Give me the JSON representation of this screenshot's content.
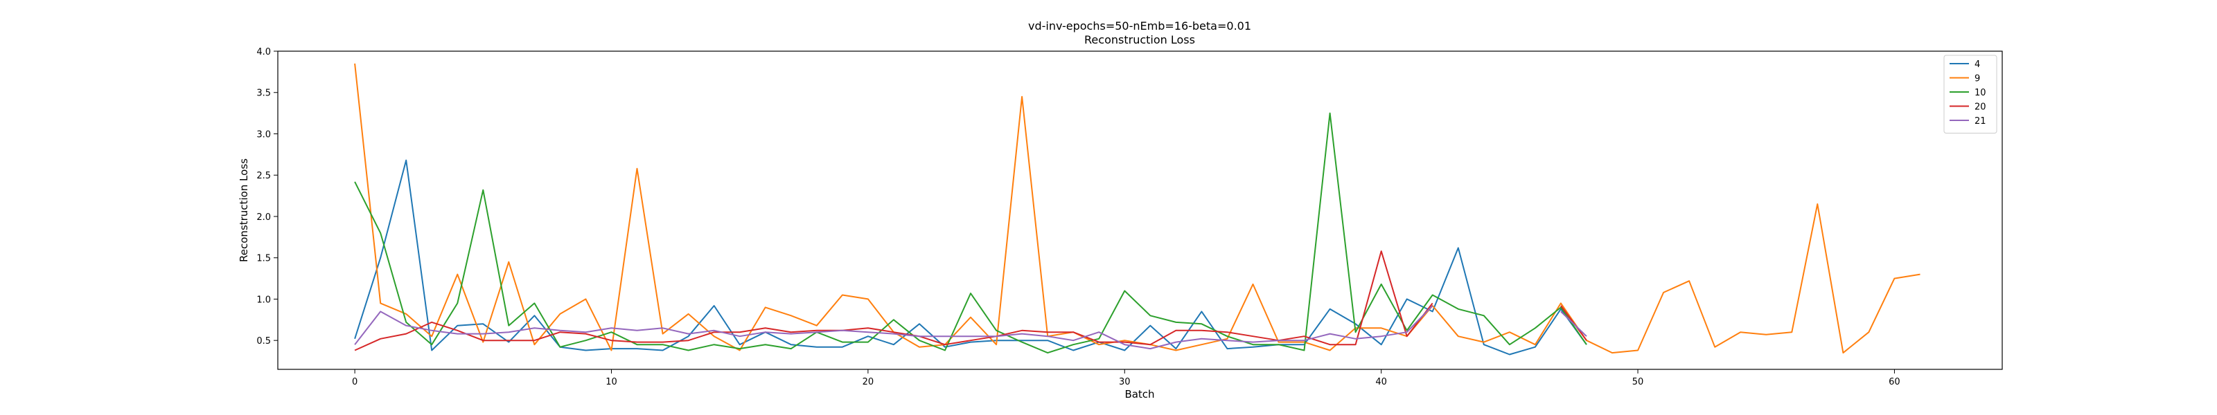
{
  "chart_data": {
    "type": "line",
    "title": "vd-inv-epochs=50-nEmb=16-beta=0.01",
    "subtitle": "Reconstruction Loss",
    "xlabel": "Batch",
    "ylabel": "Reconstruction Loss",
    "xlim": [
      -3,
      64.2
    ],
    "ylim": [
      0.15,
      4.0
    ],
    "xticks": [
      0,
      10,
      20,
      30,
      40,
      50,
      60
    ],
    "yticks": [
      0.5,
      1.0,
      1.5,
      2.0,
      2.5,
      3.0,
      3.5,
      4.0
    ],
    "xtick_labels": [
      "0",
      "10",
      "20",
      "30",
      "40",
      "50",
      "60"
    ],
    "ytick_labels": [
      "0.5",
      "1.0",
      "1.5",
      "2.0",
      "2.5",
      "3.0",
      "3.5",
      "4.0"
    ],
    "grid": false,
    "legend_position": "top-right",
    "series": [
      {
        "name": "4",
        "color": "#1f77b4",
        "values": [
          0.52,
          1.5,
          2.68,
          0.38,
          0.68,
          0.7,
          0.48,
          0.8,
          0.42,
          0.38,
          0.4,
          0.4,
          0.38,
          0.55,
          0.92,
          0.45,
          0.6,
          0.45,
          0.42,
          0.42,
          0.55,
          0.45,
          0.7,
          0.42,
          0.48,
          0.5,
          0.5,
          0.5,
          0.38,
          0.48,
          0.38,
          0.68,
          0.4,
          0.85,
          0.4,
          0.42,
          0.45,
          0.45,
          0.88,
          0.7,
          0.45,
          1.0,
          0.85,
          1.62,
          0.45,
          0.33,
          0.42,
          0.88,
          0.45
        ]
      },
      {
        "name": "9",
        "color": "#ff7f0e",
        "values": [
          3.85,
          0.95,
          0.82,
          0.55,
          1.3,
          0.48,
          1.45,
          0.45,
          0.82,
          1.0,
          0.38,
          2.58,
          0.58,
          0.82,
          0.55,
          0.38,
          0.9,
          0.8,
          0.68,
          1.05,
          1.0,
          0.6,
          0.42,
          0.45,
          0.78,
          0.45,
          3.45,
          0.55,
          0.6,
          0.45,
          0.5,
          0.45,
          0.38,
          0.45,
          0.52,
          1.18,
          0.48,
          0.48,
          0.38,
          0.65,
          0.65,
          0.55,
          0.92,
          0.55,
          0.48,
          0.6,
          0.45,
          0.95,
          0.5,
          0.35,
          0.38,
          1.08,
          1.22,
          0.42,
          0.6,
          0.57,
          0.6,
          2.15,
          0.35,
          0.6,
          1.25,
          1.3
        ]
      },
      {
        "name": "10",
        "color": "#2ca02c",
        "values": [
          2.42,
          1.8,
          0.72,
          0.45,
          0.95,
          2.32,
          0.68,
          0.95,
          0.42,
          0.5,
          0.6,
          0.45,
          0.45,
          0.38,
          0.45,
          0.4,
          0.45,
          0.4,
          0.6,
          0.48,
          0.48,
          0.75,
          0.5,
          0.38,
          1.07,
          0.62,
          0.48,
          0.35,
          0.45,
          0.52,
          1.1,
          0.8,
          0.72,
          0.7,
          0.55,
          0.45,
          0.45,
          0.38,
          3.25,
          0.6,
          1.18,
          0.62,
          1.05,
          0.88,
          0.8,
          0.45,
          0.65,
          0.9,
          0.45
        ]
      },
      {
        "name": "20",
        "color": "#d62728",
        "values": [
          0.38,
          0.52,
          0.58,
          0.72,
          0.62,
          0.5,
          0.5,
          0.5,
          0.6,
          0.58,
          0.5,
          0.48,
          0.48,
          0.5,
          0.6,
          0.6,
          0.65,
          0.6,
          0.62,
          0.62,
          0.65,
          0.6,
          0.55,
          0.45,
          0.5,
          0.55,
          0.62,
          0.6,
          0.6,
          0.48,
          0.48,
          0.45,
          0.62,
          0.62,
          0.6,
          0.55,
          0.5,
          0.55,
          0.45,
          0.45,
          1.58,
          0.55,
          0.95,
          null,
          null,
          null,
          null,
          0.92,
          0.5
        ]
      },
      {
        "name": "21",
        "color": "#9467bd",
        "values": [
          0.45,
          0.85,
          0.68,
          0.62,
          0.58,
          0.58,
          0.6,
          0.65,
          0.62,
          0.6,
          0.65,
          0.62,
          0.65,
          0.58,
          0.62,
          0.55,
          0.6,
          0.58,
          0.6,
          0.62,
          0.6,
          0.58,
          0.55,
          0.55,
          0.55,
          0.55,
          0.58,
          0.55,
          0.5,
          0.6,
          0.45,
          0.4,
          0.48,
          0.52,
          0.5,
          0.48,
          0.5,
          0.5,
          0.58,
          0.52,
          0.55,
          0.6,
          0.92,
          null,
          null,
          null,
          null,
          0.85,
          0.55
        ]
      }
    ]
  }
}
